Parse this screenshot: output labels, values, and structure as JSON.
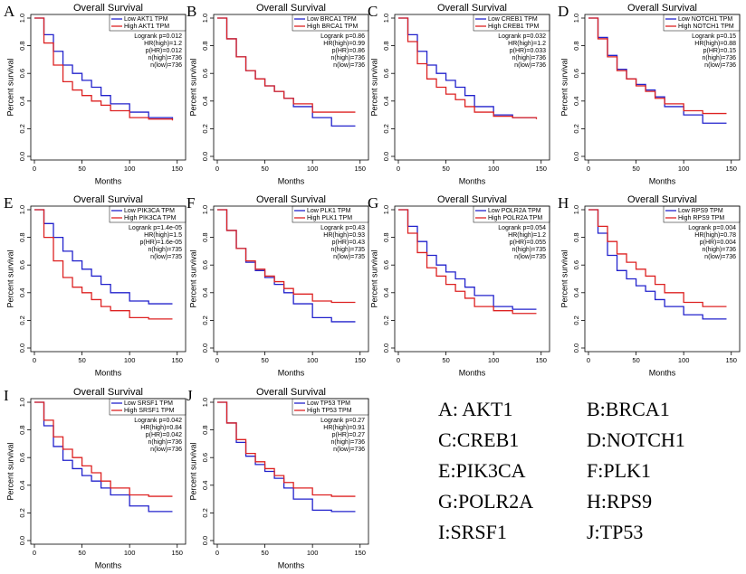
{
  "chart_data": [
    {
      "type": "line",
      "step": true,
      "panel": "A",
      "title": "Overall Survival",
      "xlabel": "Months",
      "ylabel": "Percent survival",
      "xlim": [
        0,
        155
      ],
      "xticks": [
        0,
        50,
        100,
        150
      ],
      "ylim": [
        0,
        1
      ],
      "yticks": [
        {
          "value": 0,
          "label": "0.0"
        },
        0.2,
        0.4,
        0.6,
        0.8,
        {
          "value": 1,
          "label": "1.0"
        }
      ],
      "x": [
        0,
        10,
        20,
        30,
        40,
        50,
        60,
        70,
        80,
        100,
        120,
        145
      ],
      "series": [
        {
          "name": "Low AKT1 TPM",
          "color": "#2222cc",
          "values": [
            1,
            0.88,
            0.76,
            0.66,
            0.6,
            0.55,
            0.5,
            0.44,
            0.38,
            0.32,
            0.28,
            0.27
          ]
        },
        {
          "name": "High AKT1 TPM",
          "color": "#dd2222",
          "values": [
            1,
            0.82,
            0.66,
            0.54,
            0.48,
            0.44,
            0.4,
            0.37,
            0.33,
            0.28,
            0.27,
            0.26
          ]
        }
      ],
      "annotations": [
        "Logrank p=0.012",
        "HR(high)=1.2",
        "p(HR)=0.012",
        "n(high)=736",
        "n(low)=736"
      ]
    },
    {
      "type": "line",
      "step": true,
      "panel": "B",
      "title": "Overall Survival",
      "xlabel": "Months",
      "ylabel": "Percent survival",
      "xlim": [
        0,
        155
      ],
      "xticks": [
        0,
        50,
        100,
        150
      ],
      "ylim": [
        0,
        1
      ],
      "yticks": [
        {
          "value": 0,
          "label": "0.0"
        },
        0.2,
        0.4,
        0.6,
        0.8,
        {
          "value": 1,
          "label": "1.0"
        }
      ],
      "x": [
        0,
        10,
        20,
        30,
        40,
        50,
        60,
        70,
        80,
        100,
        120,
        145
      ],
      "series": [
        {
          "name": "Low BRCA1 TPM",
          "color": "#2222cc",
          "values": [
            1,
            0.85,
            0.72,
            0.62,
            0.56,
            0.51,
            0.47,
            0.42,
            0.36,
            0.28,
            0.22,
            0.22
          ]
        },
        {
          "name": "High BRCA1 TPM",
          "color": "#dd2222",
          "values": [
            1,
            0.85,
            0.72,
            0.62,
            0.56,
            0.51,
            0.47,
            0.42,
            0.38,
            0.32,
            0.32,
            0.32
          ]
        }
      ],
      "annotations": [
        "Logrank p=0.86",
        "HR(high)=0.99",
        "p(HR)=0.86",
        "n(high)=736",
        "n(low)=736"
      ]
    },
    {
      "type": "line",
      "step": true,
      "panel": "C",
      "title": "Overall Survival",
      "xlabel": "Months",
      "ylabel": "Percent survival",
      "xlim": [
        0,
        155
      ],
      "xticks": [
        0,
        50,
        100,
        150
      ],
      "ylim": [
        0,
        1
      ],
      "yticks": [
        {
          "value": 0,
          "label": "0.0"
        },
        0.2,
        0.4,
        0.6,
        0.8,
        {
          "value": 1,
          "label": "1.0"
        }
      ],
      "x": [
        0,
        10,
        20,
        30,
        40,
        50,
        60,
        70,
        80,
        100,
        120,
        145
      ],
      "series": [
        {
          "name": "Low CREB1 TPM",
          "color": "#2222cc",
          "values": [
            1,
            0.88,
            0.76,
            0.66,
            0.6,
            0.55,
            0.5,
            0.44,
            0.36,
            0.3,
            0.28,
            0.28
          ]
        },
        {
          "name": "High CREB1 TPM",
          "color": "#dd2222",
          "values": [
            1,
            0.83,
            0.67,
            0.56,
            0.5,
            0.45,
            0.41,
            0.36,
            0.32,
            0.29,
            0.28,
            0.27
          ]
        }
      ],
      "annotations": [
        "Logrank p=0.032",
        "HR(high)=1.2",
        "p(HR)=0.033",
        "n(high)=736",
        "n(low)=736"
      ]
    },
    {
      "type": "line",
      "step": true,
      "panel": "D",
      "title": "Overall Survival",
      "xlabel": "Months",
      "ylabel": "Percent survival",
      "xlim": [
        0,
        155
      ],
      "xticks": [
        0,
        50,
        100,
        150
      ],
      "ylim": [
        0,
        1
      ],
      "yticks": [
        {
          "value": 0,
          "label": "0.0"
        },
        0.2,
        0.4,
        0.6,
        0.8,
        {
          "value": 1,
          "label": "1.0"
        }
      ],
      "x": [
        0,
        10,
        20,
        30,
        40,
        50,
        60,
        70,
        80,
        100,
        120,
        145
      ],
      "series": [
        {
          "name": "Low NOTCH1 TPM",
          "color": "#2222cc",
          "values": [
            1,
            0.86,
            0.73,
            0.63,
            0.56,
            0.52,
            0.48,
            0.43,
            0.36,
            0.3,
            0.24,
            0.24
          ]
        },
        {
          "name": "High NOTCH1 TPM",
          "color": "#dd2222",
          "values": [
            1,
            0.85,
            0.72,
            0.62,
            0.56,
            0.51,
            0.47,
            0.42,
            0.38,
            0.33,
            0.31,
            0.31
          ]
        }
      ],
      "annotations": [
        "Logrank p=0.15",
        "HR(high)=0.88",
        "p(HR)=0.15",
        "n(high)=736",
        "n(low)=736"
      ]
    },
    {
      "type": "line",
      "step": true,
      "panel": "E",
      "title": "Overall Survival",
      "xlabel": "Months",
      "ylabel": "Percent survival",
      "xlim": [
        0,
        155
      ],
      "xticks": [
        0,
        50,
        100,
        150
      ],
      "ylim": [
        0,
        1
      ],
      "yticks": [
        {
          "value": 0,
          "label": "0.0"
        },
        0.2,
        0.4,
        0.6,
        0.8,
        {
          "value": 1,
          "label": "1.0"
        }
      ],
      "x": [
        0,
        10,
        20,
        30,
        40,
        50,
        60,
        70,
        80,
        100,
        120,
        145
      ],
      "series": [
        {
          "name": "Low PIK3CA TPM",
          "color": "#2222cc",
          "values": [
            1,
            0.9,
            0.8,
            0.7,
            0.63,
            0.57,
            0.52,
            0.46,
            0.4,
            0.34,
            0.32,
            0.32
          ]
        },
        {
          "name": "High PIK3CA TPM",
          "color": "#dd2222",
          "values": [
            1,
            0.8,
            0.63,
            0.51,
            0.44,
            0.4,
            0.35,
            0.3,
            0.27,
            0.22,
            0.21,
            0.21
          ]
        }
      ],
      "annotations": [
        "Logrank p=1.4e-05",
        "HR(high)=1.5",
        "p(HR)=1.6e-05",
        "n(high)=735",
        "n(low)=735"
      ]
    },
    {
      "type": "line",
      "step": true,
      "panel": "F",
      "title": "Overall Survival",
      "xlabel": "Months",
      "ylabel": "Percent survival",
      "xlim": [
        0,
        155
      ],
      "xticks": [
        0,
        50,
        100,
        150
      ],
      "ylim": [
        0,
        1
      ],
      "yticks": [
        {
          "value": 0,
          "label": "0.0"
        },
        0.2,
        0.4,
        0.6,
        0.8,
        {
          "value": 1,
          "label": "1.0"
        }
      ],
      "x": [
        0,
        10,
        20,
        30,
        40,
        50,
        60,
        70,
        80,
        100,
        120,
        145
      ],
      "series": [
        {
          "name": "Low PLK1 TPM",
          "color": "#2222cc",
          "values": [
            1,
            0.85,
            0.72,
            0.62,
            0.56,
            0.51,
            0.46,
            0.4,
            0.32,
            0.22,
            0.19,
            0.19
          ]
        },
        {
          "name": "High PLK1 TPM",
          "color": "#dd2222",
          "values": [
            1,
            0.85,
            0.72,
            0.63,
            0.57,
            0.52,
            0.48,
            0.43,
            0.39,
            0.34,
            0.33,
            0.33
          ]
        }
      ],
      "annotations": [
        "Logrank p=0.43",
        "HR(high)=0.93",
        "p(HR)=0.43",
        "n(high)=735",
        "n(low)=735"
      ]
    },
    {
      "type": "line",
      "step": true,
      "panel": "G",
      "title": "Overall Survival",
      "xlabel": "Months",
      "ylabel": "Percent survival",
      "xlim": [
        0,
        155
      ],
      "xticks": [
        0,
        50,
        100,
        150
      ],
      "ylim": [
        0,
        1
      ],
      "yticks": [
        {
          "value": 0,
          "label": "0.0"
        },
        0.2,
        0.4,
        0.6,
        0.8,
        {
          "value": 1,
          "label": "1.0"
        }
      ],
      "x": [
        0,
        10,
        20,
        30,
        40,
        50,
        60,
        70,
        80,
        100,
        120,
        145
      ],
      "series": [
        {
          "name": "Low POLR2A TPM",
          "color": "#2222cc",
          "values": [
            1,
            0.88,
            0.77,
            0.67,
            0.6,
            0.55,
            0.5,
            0.44,
            0.38,
            0.3,
            0.28,
            0.28
          ]
        },
        {
          "name": "High POLR2A TPM",
          "color": "#dd2222",
          "values": [
            1,
            0.83,
            0.69,
            0.58,
            0.52,
            0.46,
            0.41,
            0.36,
            0.3,
            0.27,
            0.25,
            0.25
          ]
        }
      ],
      "annotations": [
        "Logrank p=0.054",
        "HR(high)=1.2",
        "p(HR)=0.055",
        "n(high)=735",
        "n(low)=735"
      ]
    },
    {
      "type": "line",
      "step": true,
      "panel": "H",
      "title": "Overall Survival",
      "xlabel": "Months",
      "ylabel": "Percent survival",
      "xlim": [
        0,
        155
      ],
      "xticks": [
        0,
        50,
        100,
        150
      ],
      "ylim": [
        0,
        1
      ],
      "yticks": [
        {
          "value": 0,
          "label": "0.0"
        },
        0.2,
        0.4,
        0.6,
        0.8,
        {
          "value": 1,
          "label": "1.0"
        }
      ],
      "x": [
        0,
        10,
        20,
        30,
        40,
        50,
        60,
        70,
        80,
        100,
        120,
        145
      ],
      "series": [
        {
          "name": "Low RPS9 TPM",
          "color": "#2222cc",
          "values": [
            1,
            0.83,
            0.67,
            0.56,
            0.5,
            0.45,
            0.41,
            0.35,
            0.3,
            0.24,
            0.21,
            0.21
          ]
        },
        {
          "name": "High RPS9 TPM",
          "color": "#dd2222",
          "values": [
            1,
            0.88,
            0.77,
            0.68,
            0.62,
            0.57,
            0.52,
            0.46,
            0.4,
            0.33,
            0.3,
            0.3
          ]
        }
      ],
      "annotations": [
        "Logrank p=0.004",
        "HR(high)=0.78",
        "p(HR)=0.004",
        "n(high)=736",
        "n(low)=736"
      ]
    },
    {
      "type": "line",
      "step": true,
      "panel": "I",
      "title": "Overall Survival",
      "xlabel": "Months",
      "ylabel": "Percent survival",
      "xlim": [
        0,
        155
      ],
      "xticks": [
        0,
        50,
        100,
        150
      ],
      "ylim": [
        0,
        1
      ],
      "yticks": [
        {
          "value": 0,
          "label": "0.0"
        },
        0.2,
        0.4,
        0.6,
        0.8,
        {
          "value": 1,
          "label": "1.0"
        }
      ],
      "x": [
        0,
        10,
        20,
        30,
        40,
        50,
        60,
        70,
        80,
        100,
        120,
        145
      ],
      "series": [
        {
          "name": "Low SRSF1 TPM",
          "color": "#2222cc",
          "values": [
            1,
            0.83,
            0.68,
            0.58,
            0.52,
            0.47,
            0.43,
            0.38,
            0.33,
            0.25,
            0.21,
            0.21
          ]
        },
        {
          "name": "High SRSF1 TPM",
          "color": "#dd2222",
          "values": [
            1,
            0.87,
            0.75,
            0.66,
            0.6,
            0.54,
            0.49,
            0.43,
            0.38,
            0.33,
            0.32,
            0.32
          ]
        }
      ],
      "annotations": [
        "Logrank p=0.042",
        "HR(high)=0.84",
        "p(HR)=0.042",
        "n(high)=736",
        "n(low)=736"
      ]
    },
    {
      "type": "line",
      "step": true,
      "panel": "J",
      "title": "Overall Survival",
      "xlabel": "Months",
      "ylabel": "Percent survival",
      "xlim": [
        0,
        155
      ],
      "xticks": [
        0,
        50,
        100,
        150
      ],
      "ylim": [
        0,
        1
      ],
      "yticks": [
        {
          "value": 0,
          "label": "0.0"
        },
        0.2,
        0.4,
        0.6,
        0.8,
        {
          "value": 1,
          "label": "1.0"
        }
      ],
      "x": [
        0,
        10,
        20,
        30,
        40,
        50,
        60,
        70,
        80,
        100,
        120,
        145
      ],
      "series": [
        {
          "name": "Low TP53 TPM",
          "color": "#2222cc",
          "values": [
            1,
            0.85,
            0.71,
            0.61,
            0.55,
            0.5,
            0.45,
            0.38,
            0.3,
            0.22,
            0.21,
            0.21
          ]
        },
        {
          "name": "High TP53 TPM",
          "color": "#dd2222",
          "values": [
            1,
            0.85,
            0.73,
            0.63,
            0.57,
            0.52,
            0.47,
            0.42,
            0.38,
            0.33,
            0.32,
            0.32
          ]
        }
      ],
      "annotations": [
        "Logrank p=0.27",
        "HR(high)=0.91",
        "p(HR)=0.27",
        "n(high)=736",
        "n(low)=736"
      ]
    }
  ],
  "key": [
    "A: AKT1",
    "B:BRCA1",
    "C:CREB1",
    "D:NOTCH1",
    "E:PIK3CA",
    "F:PLK1",
    "G:POLR2A",
    "H:RPS9",
    "I:SRSF1",
    "J:TP53"
  ]
}
